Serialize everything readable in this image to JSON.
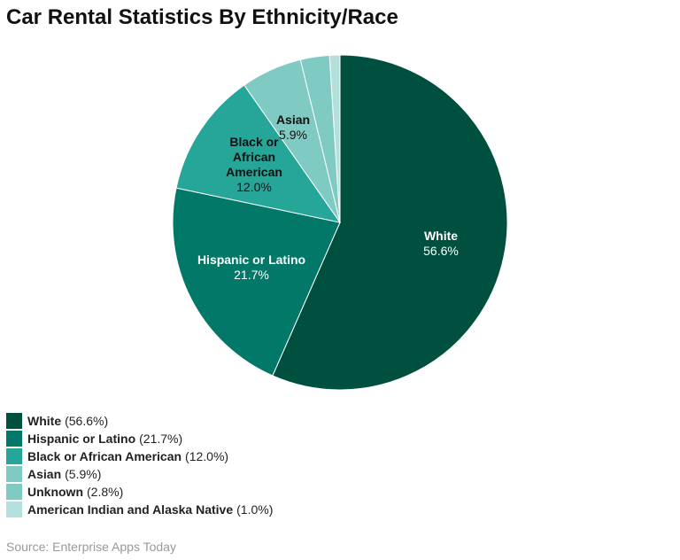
{
  "chart_data": {
    "type": "pie",
    "title": "Car Rental Statistics By Ethnicity/Race",
    "slices": [
      {
        "label": "White",
        "value": 56.6,
        "pct": "56.6%",
        "color": "#00503f",
        "text_color": "#ffffff"
      },
      {
        "label": "Hispanic or Latino",
        "value": 21.7,
        "pct": "21.7%",
        "color": "#017868",
        "text_color": "#ffffff"
      },
      {
        "label": "Black or African American",
        "value": 12.0,
        "pct": "12.0%",
        "color": "#26a699",
        "text_color": "#111111"
      },
      {
        "label": "Asian",
        "value": 5.9,
        "pct": "5.9%",
        "color": "#7fcbc3",
        "text_color": "#111111"
      },
      {
        "label": "Unknown",
        "value": 2.8,
        "pct": "2.8%",
        "color": "#7fcbc3",
        "text_color": "#111111"
      },
      {
        "label": "American Indian and Alaska Native",
        "value": 1.0,
        "pct": "1.0%",
        "color": "#b4e0dc",
        "text_color": "#111111"
      }
    ],
    "legend_items": [
      "(56.6%)",
      "(21.7%)",
      "(12.0%)",
      "(5.9%)",
      "(2.8%)",
      "(1.0%)"
    ],
    "legend_placement": "bottom-left",
    "black_label_lines": [
      "Black or",
      "African",
      "American"
    ],
    "source": "Source: Enterprise Apps Today"
  }
}
